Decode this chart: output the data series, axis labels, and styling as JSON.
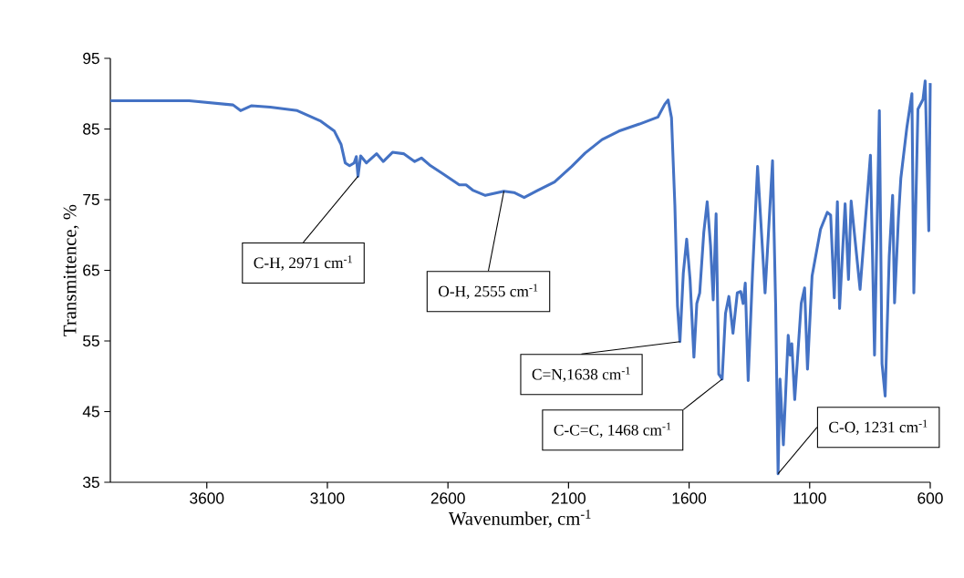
{
  "chart_data": {
    "type": "line",
    "xlabel": "Wavenumber, cm$^{-1}$",
    "ylabel": "Transmittence, %",
    "color": "#4472c4",
    "x": [
      4000,
      3673,
      3491,
      3460,
      3414,
      3337,
      3225,
      3127,
      3071,
      3043,
      3026,
      3008,
      2989,
      2980,
      2973,
      2962,
      2938,
      2896,
      2868,
      2830,
      2784,
      2738,
      2710,
      2672,
      2623,
      2553,
      2525,
      2495,
      2445,
      2368,
      2326,
      2284,
      2228,
      2158,
      2087,
      2031,
      1961,
      1891,
      1806,
      1729,
      1701,
      1687,
      1673,
      1659,
      1648,
      1638,
      1624,
      1610,
      1596,
      1580,
      1568,
      1556,
      1539,
      1525,
      1511,
      1500,
      1488,
      1477,
      1463,
      1449,
      1435,
      1418,
      1400,
      1386,
      1376,
      1367,
      1355,
      1337,
      1316,
      1285,
      1254,
      1241,
      1231,
      1223,
      1209,
      1189,
      1181,
      1174,
      1162,
      1135,
      1121,
      1109,
      1090,
      1055,
      1027,
      1013,
      998,
      985,
      976,
      953,
      939,
      928,
      891,
      848,
      831,
      811,
      800,
      787,
      770,
      756,
      748,
      732,
      722,
      697,
      676,
      668,
      651,
      630,
      621,
      606,
      600
    ],
    "values": [
      89.0,
      89.0,
      88.4,
      87.6,
      88.3,
      88.1,
      87.6,
      86.1,
      84.7,
      82.8,
      80.2,
      79.8,
      80.2,
      81.1,
      78.3,
      81.2,
      80.2,
      81.5,
      80.4,
      81.7,
      81.5,
      80.4,
      80.9,
      79.8,
      78.7,
      77.1,
      77.1,
      76.3,
      75.6,
      76.2,
      76.0,
      75.3,
      76.3,
      77.5,
      79.7,
      81.6,
      83.5,
      84.7,
      85.7,
      86.7,
      88.5,
      89.1,
      86.6,
      74.2,
      59.9,
      54.9,
      64.6,
      69.4,
      63.7,
      52.7,
      60.3,
      61.8,
      70.4,
      74.7,
      68.5,
      60.8,
      73.0,
      50.3,
      49.6,
      58.9,
      61.3,
      56.1,
      61.8,
      62.0,
      60.3,
      63.2,
      49.4,
      64.6,
      79.7,
      61.8,
      80.5,
      59.9,
      36.2,
      49.6,
      40.3,
      55.8,
      53.0,
      54.6,
      46.7,
      60.3,
      62.5,
      51.0,
      64.2,
      70.8,
      73.2,
      72.8,
      61.1,
      74.7,
      59.6,
      74.4,
      63.7,
      74.8,
      62.3,
      81.3,
      53.0,
      87.6,
      51.8,
      47.2,
      67.0,
      75.6,
      60.4,
      72.3,
      78.0,
      85.2,
      90.0,
      61.8,
      87.8,
      89.2,
      91.8,
      70.6,
      91.5
    ],
    "xlim": [
      4000,
      600
    ],
    "xticks": [
      3600,
      3100,
      2600,
      2100,
      1600,
      1100,
      600
    ],
    "ylim": [
      35,
      95
    ],
    "yticks": [
      35,
      45,
      55,
      65,
      75,
      85,
      95
    ],
    "annotations": [
      {
        "text": "C-H, 2971 cm$^{-1}$",
        "x": 2973,
        "y": 78.3
      },
      {
        "text": "O-H, 2555 cm$^{-1}$",
        "x": 2368,
        "y": 76.2
      },
      {
        "text": "C=N,1638 cm$^{-1}$",
        "x": 1638,
        "y": 54.9
      },
      {
        "text": "C-C=C, 1468 cm$^{-1}$",
        "x": 1463,
        "y": 49.6
      },
      {
        "text": "C-O, 1231 cm$^{-1}$",
        "x": 1231,
        "y": 36.2
      }
    ]
  }
}
